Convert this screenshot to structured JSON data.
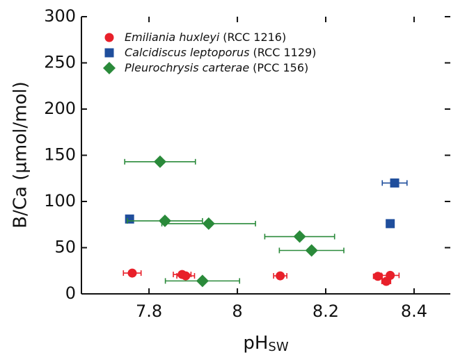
{
  "chart_data": {
    "type": "scatter",
    "x_label": "pH",
    "x_label_subscript": "SW",
    "y_label": "B/Ca (µmol/mol)",
    "xlim": [
      7.647,
      8.482
    ],
    "ylim": [
      0,
      300
    ],
    "xticks": [
      7.8,
      8.0,
      8.2,
      8.4
    ],
    "yticks": [
      0,
      50,
      100,
      150,
      200,
      250,
      300
    ],
    "legend": "upper left",
    "series": [
      {
        "name": "Emiliania huxleyi",
        "strain": "(RCC 1216)",
        "color": "#e8202a",
        "marker": "circle",
        "x": [
          7.762,
          7.875,
          7.883,
          8.097,
          8.318,
          8.346,
          8.337
        ],
        "values": [
          22.5,
          21,
          19.5,
          19.5,
          19,
          20,
          13.5
        ],
        "xerr": [
          0.02,
          0.02,
          0.02,
          0.015,
          0.01,
          0.02,
          0.01
        ]
      },
      {
        "name": "Calcidiscus leptoporus",
        "strain": "(RCC 1129)",
        "color": "#1f4e9c",
        "marker": "square",
        "x": [
          7.756,
          8.356,
          8.346
        ],
        "values": [
          81,
          120,
          76
        ],
        "xerr": [
          0.008,
          0.028,
          0.006
        ]
      },
      {
        "name": "Pleurochrysis carterae",
        "strain": "(PCC 156)",
        "color": "#2a8a3a",
        "marker": "diamond",
        "x": [
          7.825,
          7.836,
          7.935,
          7.921,
          8.141,
          8.168
        ],
        "values": [
          143,
          79,
          76,
          14,
          62,
          47
        ],
        "xerr": [
          0.08,
          0.085,
          0.106,
          0.084,
          0.079,
          0.073
        ]
      }
    ]
  }
}
